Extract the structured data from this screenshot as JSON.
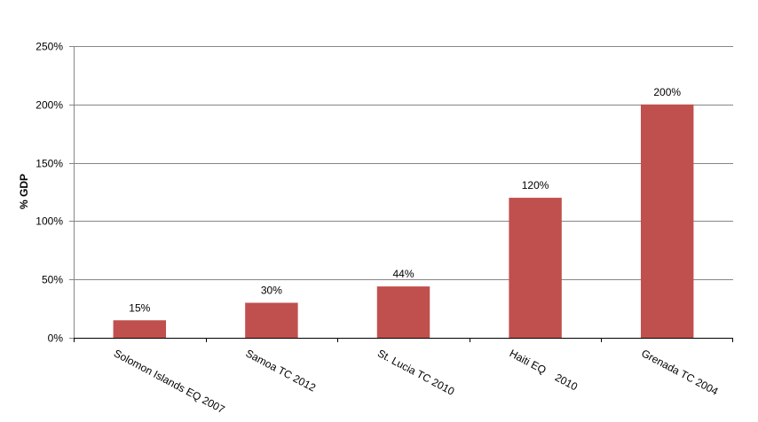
{
  "chart_data": {
    "type": "bar",
    "title": "",
    "xlabel": "",
    "ylabel": "% GDP",
    "categories": [
      "Solomon Islands EQ 2007",
      "Samoa TC 2012",
      "St. Lucia TC 2010",
      "Haiti EQ    2010",
      "Grenada TC 2004"
    ],
    "values": [
      15,
      30,
      44,
      120,
      200
    ],
    "data_labels": [
      "15%",
      "30%",
      "44%",
      "120%",
      "200%"
    ],
    "ylim": [
      0,
      250
    ],
    "yticks": [
      0,
      50,
      100,
      150,
      200,
      250
    ],
    "ytick_labels": [
      "0%",
      "50%",
      "100%",
      "150%",
      "200%",
      "250%"
    ],
    "grid": true,
    "legend": "none",
    "bar_color": "#C0504D",
    "grid_color": "#868686"
  }
}
